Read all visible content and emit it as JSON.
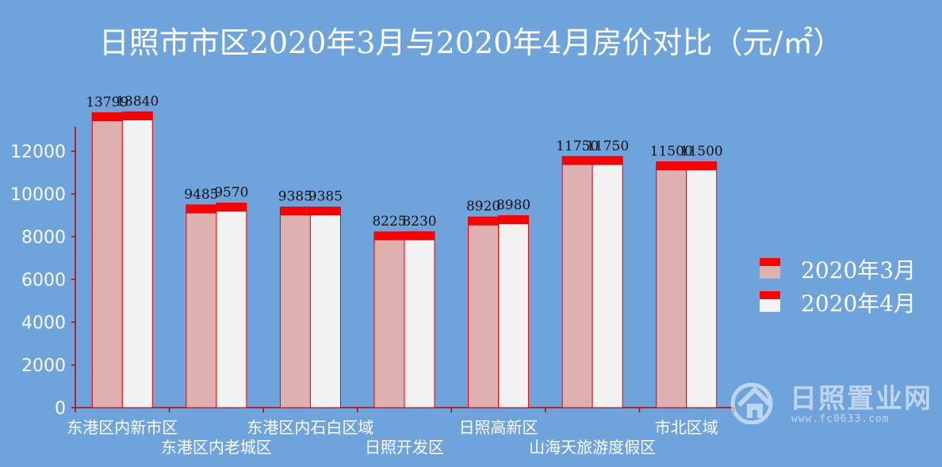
{
  "chart_data": {
    "type": "bar",
    "title": "日照市市区2020年3月与2020年4月房价对比（元/㎡）",
    "categories": [
      "东港区内新市区",
      "东港区内老城区",
      "东港区内石白区域",
      "日照开发区",
      "日照高新区",
      "山海天旅游度假区",
      "市北区域"
    ],
    "series": [
      {
        "name": "2020年3月",
        "values": [
          13799,
          9485,
          9385,
          8225,
          8920,
          11750,
          11500
        ],
        "color": "#dfb0b0"
      },
      {
        "name": "2020年4月",
        "values": [
          13840,
          9570,
          9385,
          8230,
          8980,
          11750,
          11500
        ],
        "color": "#f2f2f2"
      }
    ],
    "cap_color": "#ff0000",
    "ylim": [
      0,
      14000
    ],
    "yticks": [
      "0",
      "2000",
      "4000",
      "6000",
      "8000",
      "10000",
      "12000"
    ],
    "xlabel": "",
    "ylabel": "",
    "grid": false,
    "legend_position": "right"
  },
  "watermark": {
    "text": "日照置业网",
    "url": "www.fc0633.com"
  }
}
